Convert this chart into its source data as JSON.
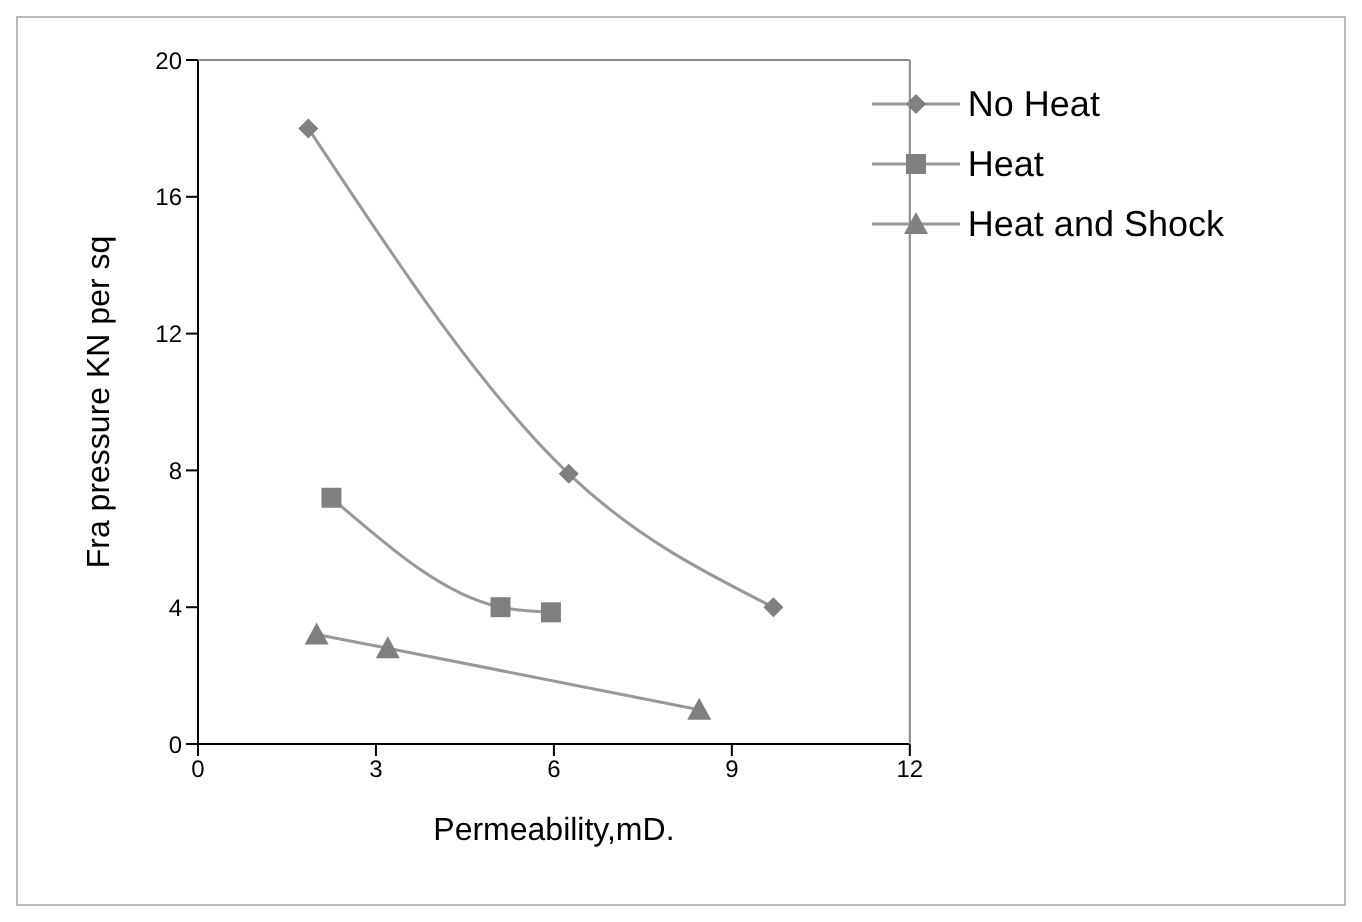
{
  "chart_data": {
    "type": "line",
    "xlabel": "Permeability,mD.",
    "ylabel": "Fra pressure  KN per sq",
    "xlim": [
      0,
      12
    ],
    "xticks": [
      0,
      3,
      6,
      9,
      12
    ],
    "ylim": [
      0,
      20
    ],
    "yticks": [
      0,
      4,
      8,
      12,
      16,
      20
    ],
    "grid": false,
    "legend": "top right",
    "line_style": "solid",
    "series": [
      {
        "name": "No Heat",
        "color": "#999999",
        "marker": "diamond",
        "x": [
          1.86,
          6.25,
          9.7
        ],
        "values": [
          18,
          7.9,
          4.0
        ]
      },
      {
        "name": "Heat",
        "color": "#999999",
        "marker": "square",
        "x": [
          2.25,
          5.1,
          5.95
        ],
        "values": [
          7.2,
          4.0,
          3.85
        ]
      },
      {
        "name": "Heat and Shock",
        "color": "#999999",
        "marker": "triangle",
        "x": [
          2.0,
          3.2,
          8.45
        ],
        "values": [
          3.2,
          2.8,
          1.0
        ]
      }
    ]
  }
}
